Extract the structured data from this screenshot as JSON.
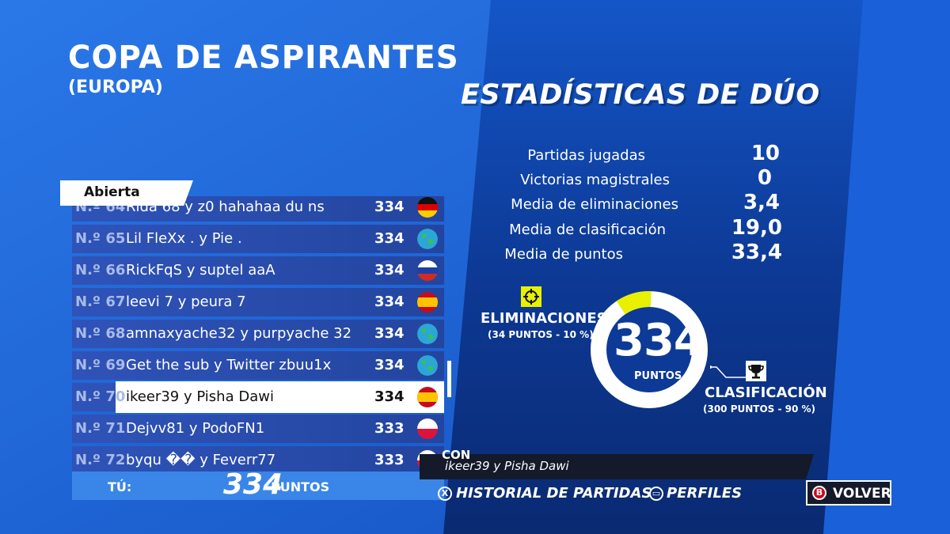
{
  "header": {
    "title": "COPA DE ASPIRANTES",
    "subtitle": "(EUROPA)"
  },
  "stats_panel": {
    "title": "ESTADÍSTICAS DE DÚO",
    "rows": [
      {
        "label": "Partidas jugadas",
        "value": "10"
      },
      {
        "label": "Victorias magistrales",
        "value": "0"
      },
      {
        "label": "Media de eliminaciones",
        "value": "3,4"
      },
      {
        "label": "Media de clasificación",
        "value": "19,0"
      },
      {
        "label": "Media de puntos",
        "value": "33,4"
      }
    ]
  },
  "leaderboard": {
    "tab_label": "Abierta",
    "rows": [
      {
        "rank": "N.º 64",
        "names": "Rida 68 y z0 hahahaa du ns",
        "score": "334",
        "flag": "germany-flag-icon"
      },
      {
        "rank": "N.º 65",
        "names": "Lil FleXx . y Pie .",
        "score": "334",
        "flag": "globe-icon"
      },
      {
        "rank": "N.º 66",
        "names": "RickFqS y suptel aaA",
        "score": "334",
        "flag": "russia-flag-icon"
      },
      {
        "rank": "N.º 67",
        "names": "leevi 7 y peura 7",
        "score": "334",
        "flag": "spain-flag-icon"
      },
      {
        "rank": "N.º 68",
        "names": "amnaxyache32 y purpyache 32",
        "score": "334",
        "flag": "globe-icon"
      },
      {
        "rank": "N.º 69",
        "names": "Get the sub y Twitter zbuu1x",
        "score": "334",
        "flag": "globe-icon"
      },
      {
        "rank": "N.º 70",
        "names": "ikeer39 y Pisha Dawi",
        "score": "334",
        "flag": "spain-flag-icon"
      },
      {
        "rank": "N.º 71",
        "names": "Dejvv81 y PodoFN1",
        "score": "333",
        "flag": "poland-flag-icon"
      },
      {
        "rank": "N.º 72",
        "names": "byqu �� y Feverr77",
        "score": "333",
        "flag": "poland-flag-icon"
      }
    ],
    "highlight_index": 6,
    "footer": {
      "label": "TÚ:",
      "points": "334",
      "unit": "PUNTOS"
    }
  },
  "score_ring": {
    "total": "334",
    "unit": "PUNTOS",
    "elim_fraction": 0.1,
    "eliminations": {
      "title": "ELIMINACIONES",
      "detail": "(34 PUNTOS - 10 %)"
    },
    "placement": {
      "title": "CLASIFICACIÓN",
      "detail": "(300 PUNTOS - 90 %)"
    }
  },
  "partner": {
    "label": "CON",
    "names": "ikeer39 y Pisha Dawi"
  },
  "bottom_bar": {
    "history": {
      "button": "X",
      "label": "HISTORIAL DE PARTIDAS"
    },
    "profiles": {
      "label": "PERFILES"
    },
    "back": {
      "button": "B",
      "label": "VOLVER"
    }
  },
  "colors": {
    "accent_yellow": "#e8f000",
    "bg_blue": "#1a63d6",
    "dark_navy": "#0f2a6b",
    "row_blue": "#2f53b8"
  }
}
